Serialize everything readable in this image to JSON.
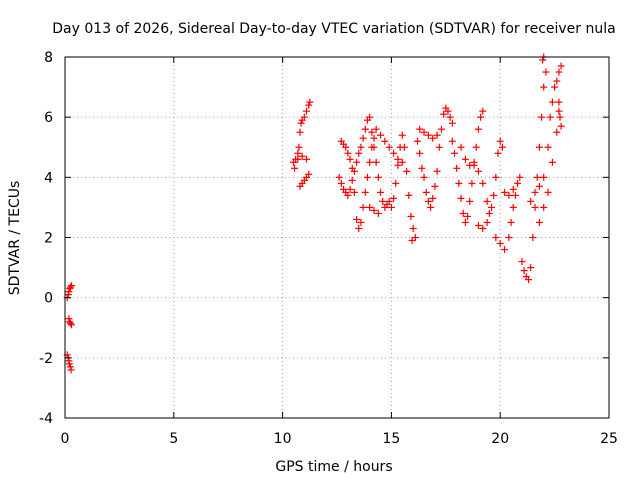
{
  "chart_data": {
    "type": "scatter",
    "title": "Day 013 of 2026, Sidereal Day-to-day VTEC variation (SDTVAR) for receiver nula",
    "xlabel": "GPS time / hours",
    "ylabel": "SDTVAR / TECUs",
    "xlim": [
      0,
      25
    ],
    "ylim": [
      -4,
      8
    ],
    "xticks": [
      0,
      5,
      10,
      15,
      20,
      25
    ],
    "yticks": [
      -4,
      -2,
      0,
      2,
      4,
      6,
      8
    ],
    "grid": true,
    "marker": "+",
    "color": "#ff0000",
    "series": [
      {
        "points": [
          [
            0.1,
            0.0
          ],
          [
            0.15,
            0.1
          ],
          [
            0.18,
            0.2
          ],
          [
            0.22,
            0.3
          ],
          [
            0.25,
            0.35
          ],
          [
            0.3,
            0.4
          ],
          [
            0.18,
            -0.7
          ],
          [
            0.2,
            -0.8
          ],
          [
            0.25,
            -0.85
          ],
          [
            0.3,
            -0.9
          ],
          [
            0.1,
            -1.9
          ],
          [
            0.15,
            -2.0
          ],
          [
            0.18,
            -2.1
          ],
          [
            0.2,
            -2.2
          ],
          [
            0.25,
            -2.3
          ],
          [
            0.28,
            -2.4
          ],
          [
            10.5,
            4.5
          ],
          [
            10.55,
            4.3
          ],
          [
            10.6,
            4.6
          ],
          [
            10.7,
            4.8
          ],
          [
            10.75,
            5.0
          ],
          [
            10.8,
            5.5
          ],
          [
            10.85,
            5.8
          ],
          [
            10.9,
            5.9
          ],
          [
            11.0,
            6.0
          ],
          [
            11.1,
            6.2
          ],
          [
            11.2,
            6.4
          ],
          [
            11.25,
            6.5
          ],
          [
            10.8,
            3.7
          ],
          [
            10.9,
            3.8
          ],
          [
            11.0,
            3.9
          ],
          [
            11.1,
            4.0
          ],
          [
            11.2,
            4.1
          ],
          [
            10.7,
            4.6
          ],
          [
            10.9,
            4.7
          ],
          [
            11.1,
            4.6
          ],
          [
            12.7,
            5.2
          ],
          [
            12.8,
            5.1
          ],
          [
            12.9,
            5.0
          ],
          [
            13.0,
            4.8
          ],
          [
            13.1,
            4.6
          ],
          [
            13.2,
            4.3
          ],
          [
            13.3,
            3.5
          ],
          [
            13.4,
            2.6
          ],
          [
            13.5,
            2.3
          ],
          [
            13.6,
            2.5
          ],
          [
            13.7,
            3.0
          ],
          [
            13.8,
            3.5
          ],
          [
            13.9,
            4.0
          ],
          [
            14.0,
            4.5
          ],
          [
            14.1,
            5.0
          ],
          [
            14.2,
            5.3
          ],
          [
            12.6,
            4.0
          ],
          [
            12.7,
            3.8
          ],
          [
            12.8,
            3.6
          ],
          [
            12.9,
            3.5
          ],
          [
            13.0,
            3.4
          ],
          [
            13.1,
            3.6
          ],
          [
            13.2,
            3.9
          ],
          [
            13.3,
            4.2
          ],
          [
            13.4,
            4.5
          ],
          [
            13.5,
            4.8
          ],
          [
            13.6,
            5.0
          ],
          [
            13.7,
            5.3
          ],
          [
            13.8,
            5.6
          ],
          [
            13.9,
            5.9
          ],
          [
            14.0,
            6.0
          ],
          [
            14.1,
            5.5
          ],
          [
            14.2,
            5.0
          ],
          [
            14.3,
            4.5
          ],
          [
            14.4,
            4.0
          ],
          [
            14.5,
            3.5
          ],
          [
            14.6,
            3.2
          ],
          [
            14.7,
            3.0
          ],
          [
            14.8,
            3.1
          ],
          [
            14.9,
            3.2
          ],
          [
            15.0,
            3.0
          ],
          [
            15.1,
            3.3
          ],
          [
            15.2,
            3.8
          ],
          [
            15.3,
            4.4
          ],
          [
            15.4,
            5.0
          ],
          [
            15.5,
            5.4
          ],
          [
            15.6,
            5.0
          ],
          [
            15.7,
            4.2
          ],
          [
            15.8,
            3.4
          ],
          [
            15.9,
            2.7
          ],
          [
            16.0,
            2.3
          ],
          [
            16.1,
            2.0
          ],
          [
            15.95,
            1.9
          ],
          [
            14.3,
            5.6
          ],
          [
            14.5,
            5.4
          ],
          [
            14.7,
            5.2
          ],
          [
            14.9,
            5.0
          ],
          [
            15.1,
            4.8
          ],
          [
            15.3,
            4.6
          ],
          [
            15.5,
            4.5
          ],
          [
            14.0,
            3.0
          ],
          [
            14.2,
            2.9
          ],
          [
            14.4,
            2.8
          ],
          [
            16.2,
            5.2
          ],
          [
            16.3,
            4.8
          ],
          [
            16.4,
            4.3
          ],
          [
            16.5,
            4.0
          ],
          [
            16.6,
            3.5
          ],
          [
            16.7,
            3.2
          ],
          [
            16.8,
            3.0
          ],
          [
            16.9,
            3.3
          ],
          [
            17.0,
            3.7
          ],
          [
            17.1,
            4.2
          ],
          [
            17.2,
            5.0
          ],
          [
            17.3,
            5.6
          ],
          [
            17.4,
            6.1
          ],
          [
            17.5,
            6.3
          ],
          [
            17.6,
            6.2
          ],
          [
            17.7,
            6.0
          ],
          [
            17.8,
            5.8
          ],
          [
            16.3,
            5.6
          ],
          [
            16.5,
            5.5
          ],
          [
            16.7,
            5.4
          ],
          [
            16.9,
            5.3
          ],
          [
            17.1,
            5.4
          ],
          [
            17.8,
            5.2
          ],
          [
            17.9,
            4.8
          ],
          [
            18.0,
            4.3
          ],
          [
            18.1,
            3.8
          ],
          [
            18.2,
            3.3
          ],
          [
            18.3,
            2.8
          ],
          [
            18.4,
            2.5
          ],
          [
            18.5,
            2.7
          ],
          [
            18.6,
            3.2
          ],
          [
            18.7,
            3.8
          ],
          [
            18.8,
            4.4
          ],
          [
            18.9,
            5.0
          ],
          [
            19.0,
            5.6
          ],
          [
            19.1,
            6.0
          ],
          [
            19.2,
            6.2
          ],
          [
            18.2,
            5.0
          ],
          [
            18.4,
            4.6
          ],
          [
            18.6,
            4.4
          ],
          [
            18.8,
            4.5
          ],
          [
            19.0,
            4.2
          ],
          [
            19.2,
            3.8
          ],
          [
            19.4,
            3.2
          ],
          [
            19.5,
            2.8
          ],
          [
            19.6,
            3.0
          ],
          [
            19.7,
            3.4
          ],
          [
            19.8,
            4.0
          ],
          [
            19.9,
            4.8
          ],
          [
            20.0,
            5.2
          ],
          [
            20.1,
            5.0
          ],
          [
            19.0,
            2.4
          ],
          [
            19.2,
            2.3
          ],
          [
            19.4,
            2.5
          ],
          [
            19.8,
            2.0
          ],
          [
            20.0,
            1.8
          ],
          [
            20.2,
            1.6
          ],
          [
            20.4,
            2.0
          ],
          [
            20.5,
            2.5
          ],
          [
            20.6,
            3.0
          ],
          [
            20.7,
            3.4
          ],
          [
            20.2,
            3.5
          ],
          [
            20.4,
            3.4
          ],
          [
            20.6,
            3.6
          ],
          [
            20.8,
            3.8
          ],
          [
            20.9,
            4.0
          ],
          [
            21.0,
            1.2
          ],
          [
            21.1,
            0.9
          ],
          [
            21.2,
            0.7
          ],
          [
            21.3,
            0.6
          ],
          [
            21.4,
            1.0
          ],
          [
            21.5,
            2.0
          ],
          [
            21.6,
            3.0
          ],
          [
            21.7,
            4.0
          ],
          [
            21.8,
            5.0
          ],
          [
            21.9,
            6.0
          ],
          [
            22.0,
            7.0
          ],
          [
            22.1,
            7.5
          ],
          [
            21.95,
            7.9
          ],
          [
            22.0,
            8.0
          ],
          [
            21.4,
            3.2
          ],
          [
            21.6,
            3.5
          ],
          [
            21.8,
            3.7
          ],
          [
            22.0,
            4.0
          ],
          [
            22.2,
            5.0
          ],
          [
            22.3,
            6.0
          ],
          [
            22.4,
            6.5
          ],
          [
            22.5,
            7.0
          ],
          [
            22.6,
            7.2
          ],
          [
            22.7,
            7.5
          ],
          [
            22.8,
            7.7
          ],
          [
            22.7,
            6.5
          ],
          [
            22.75,
            6.0
          ],
          [
            22.8,
            5.7
          ],
          [
            21.8,
            2.5
          ],
          [
            22.0,
            3.0
          ],
          [
            22.2,
            3.5
          ],
          [
            22.4,
            4.5
          ],
          [
            22.6,
            5.5
          ],
          [
            22.7,
            6.2
          ]
        ]
      }
    ]
  }
}
